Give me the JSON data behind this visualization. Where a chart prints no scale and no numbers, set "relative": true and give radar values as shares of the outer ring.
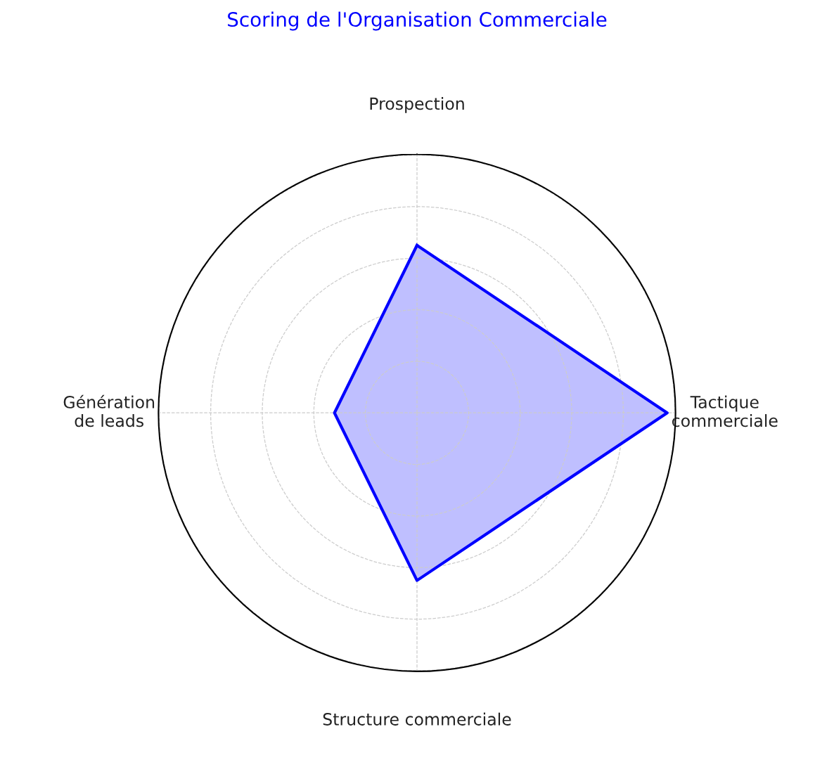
{
  "chart_data": {
    "type": "radar",
    "title": "Scoring de l'Organisation Commerciale",
    "relative": true,
    "grid": true,
    "categories": [
      "Prospection",
      "Tactique\ncommerciale",
      "Structure commerciale",
      "Génération\nde leads"
    ],
    "series": [
      {
        "color": "#0000ff",
        "values": [
          0.65,
          0.97,
          0.65,
          0.32
        ]
      }
    ]
  }
}
